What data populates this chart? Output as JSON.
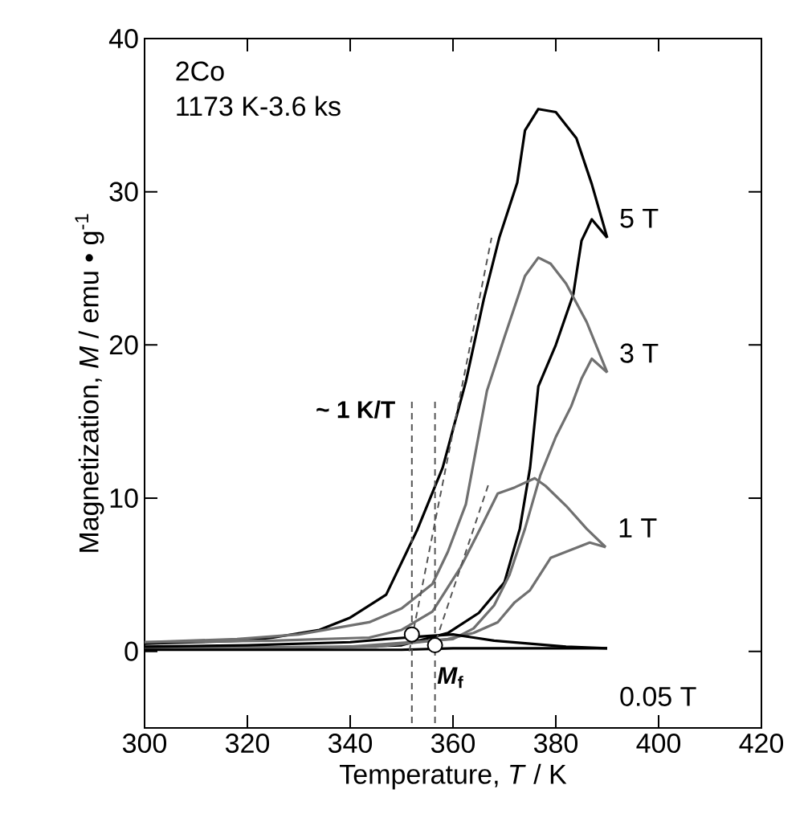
{
  "chart_data": {
    "type": "line",
    "xlabel": "Temperature, *T* / K",
    "ylabel": "Magnetization, *M* / emu • g$^{-1}$",
    "xlim": [
      300,
      420
    ],
    "ylim": [
      -5,
      40
    ],
    "xticks": [
      300,
      320,
      340,
      360,
      380,
      400,
      420
    ],
    "yticks": [
      0,
      10,
      20,
      30,
      40
    ],
    "grid": false,
    "annotations": [
      "2Co",
      "1173 K-3.6 ks",
      "~ 1 K/T",
      "*M*$_{f}$"
    ],
    "series": [
      {
        "name": "5 T",
        "color": "#000000",
        "x": [
          390,
          387,
          384,
          380,
          376.6,
          374,
          372.5,
          369,
          366,
          362.5,
          358,
          353,
          347,
          340,
          334,
          325,
          319,
          310,
          300
        ],
        "values": [
          27,
          30.5,
          33.5,
          35.2,
          35.4,
          34,
          30.6,
          27,
          23,
          17.6,
          12,
          7.9,
          3.7,
          2.2,
          1.4,
          0.9,
          0.7,
          0.6,
          0.5
        ]
      },
      {
        "color": "#000000",
        "x": [
          390,
          387,
          385,
          383.4,
          380,
          376.6,
          375,
          373,
          370,
          365,
          359,
          350,
          330,
          300
        ],
        "values": [
          27,
          28.2,
          26.8,
          23.3,
          20,
          17.3,
          12,
          8,
          4.5,
          2.5,
          1.2,
          0.4,
          0.2,
          0.2
        ]
      },
      {
        "name": "3 T",
        "color": "#707070",
        "x": [
          390,
          386,
          382,
          379,
          376.6,
          374,
          370,
          366.6,
          362.5,
          359,
          356,
          350,
          343.7,
          330,
          318,
          300
        ],
        "values": [
          18.2,
          21.5,
          24,
          25.3,
          25.7,
          24.5,
          20.5,
          17,
          9.6,
          6.5,
          4.4,
          2.8,
          1.9,
          1.1,
          0.8,
          0.6
        ]
      },
      {
        "color": "#707070",
        "x": [
          390,
          387,
          385,
          383,
          380,
          377,
          374,
          371,
          368,
          364,
          360,
          340,
          300
        ],
        "values": [
          18.2,
          19.1,
          17.8,
          16,
          14,
          11.5,
          8,
          5,
          3,
          1.5,
          0.8,
          0.3,
          0.2
        ]
      },
      {
        "name": "1 T",
        "color": "#707070",
        "x": [
          389.7,
          386,
          382,
          378,
          375.9,
          372,
          368.7,
          365.6,
          361.5,
          356,
          350,
          343.7,
          325,
          300
        ],
        "values": [
          6.8,
          8,
          9.5,
          10.8,
          11.3,
          10.7,
          10.3,
          8.2,
          5.5,
          2.6,
          1.4,
          0.9,
          0.7,
          0.6
        ]
      },
      {
        "color": "#707070",
        "x": [
          389.7,
          386.6,
          382,
          379,
          375,
          372,
          368.7,
          364,
          359,
          345,
          300
        ],
        "values": [
          6.8,
          7.1,
          6.5,
          6.1,
          4,
          3.2,
          1.9,
          1.2,
          0.8,
          0.3,
          0.2
        ]
      },
      {
        "name": "0.05 T",
        "color": "#000000",
        "x": [
          390,
          382,
          375,
          368,
          364,
          360,
          355,
          347,
          340,
          320,
          300
        ],
        "values": [
          0.2,
          0.3,
          0.5,
          0.7,
          0.9,
          1.1,
          1.0,
          0.8,
          0.6,
          0.4,
          0.3
        ]
      },
      {
        "color": "#000000",
        "x": [
          390,
          375,
          360,
          350,
          330,
          300
        ],
        "values": [
          0.2,
          0.2,
          0.2,
          0.1,
          0.1,
          0.1
        ]
      },
      {
        "color": "#555555",
        "line_style": "dashed",
        "x": [
          351.5,
          367.5
        ],
        "values": [
          0,
          27
        ]
      },
      {
        "color": "#555555",
        "line_style": "dashed",
        "x": [
          356,
          367
        ],
        "values": [
          0,
          11
        ]
      },
      {
        "color": "#555555",
        "line_style": "dashed",
        "x": [
          352,
          352
        ],
        "values": [
          16.3,
          -5
        ]
      },
      {
        "color": "#555555",
        "line_style": "dashed",
        "x": [
          356.5,
          356.5
        ],
        "values": [
          16.3,
          -5
        ]
      },
      {
        "type": "scatter",
        "marker": "circle",
        "color": "#ffffff",
        "x": [
          352,
          356.5
        ],
        "values": [
          1.1,
          0.4
        ]
      }
    ]
  }
}
